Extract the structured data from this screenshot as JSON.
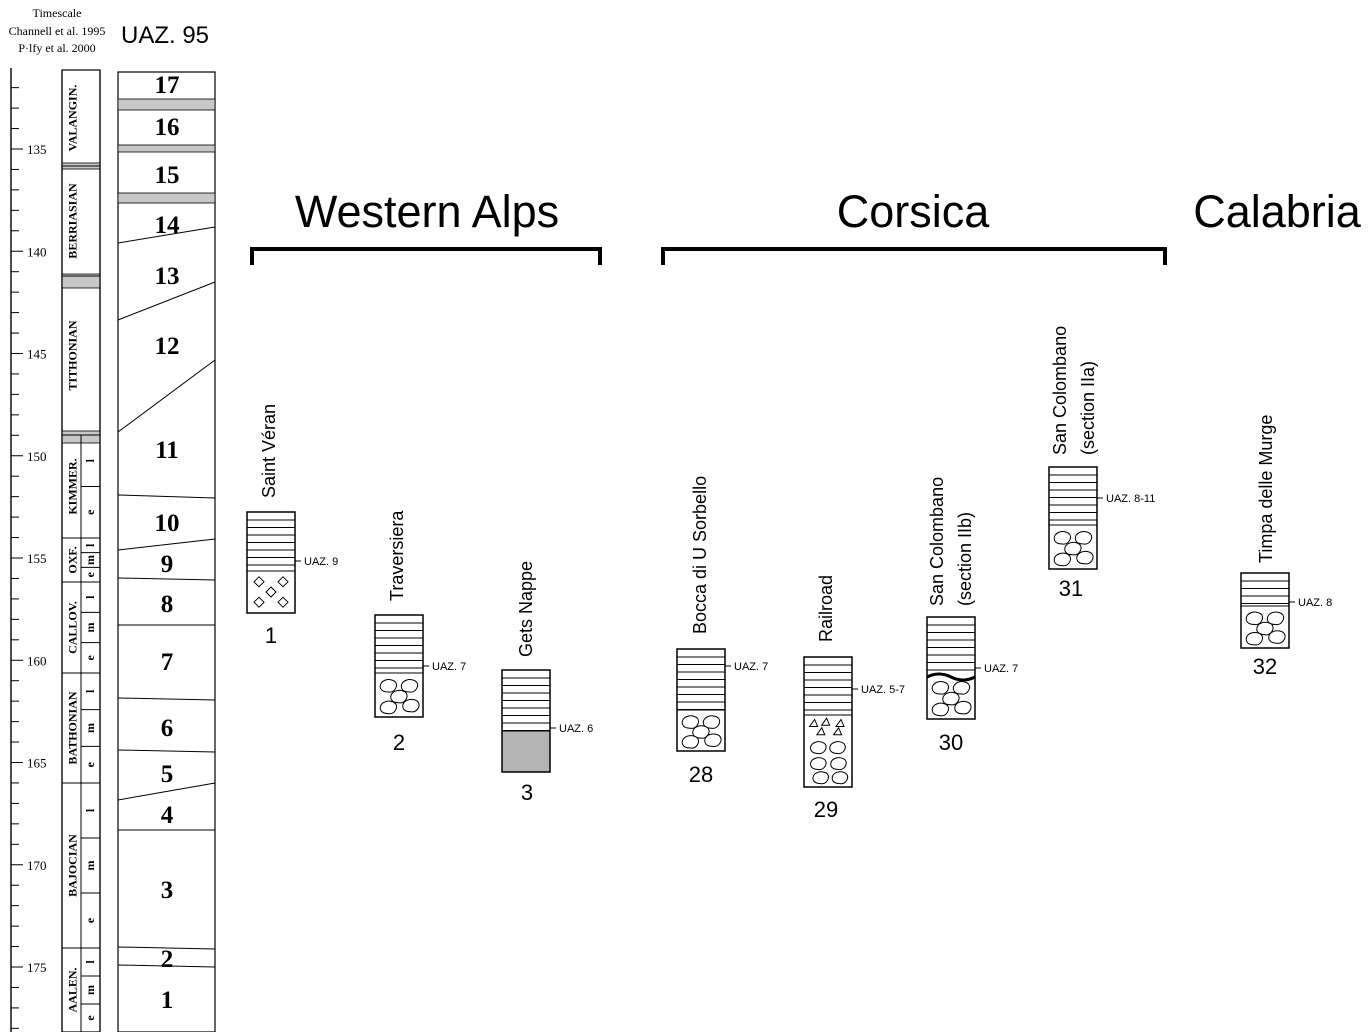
{
  "timescale": {
    "header": [
      "Timescale",
      "Channell et al. 1995",
      "P·lfy et al. 2000"
    ],
    "age_labels": [
      "135",
      "140",
      "145",
      "150",
      "155",
      "160",
      "165",
      "170",
      "175"
    ]
  },
  "uaz_title": "UAZ. 95",
  "stages": [
    {
      "name": "VALANGIN.",
      "subs": []
    },
    {
      "name": "BERRIASIAN",
      "subs": []
    },
    {
      "name": "TITHONIAN",
      "subs": []
    },
    {
      "name": "KIMMER.",
      "subs": [
        "l",
        "e"
      ]
    },
    {
      "name": "OXF.",
      "subs": [
        "l",
        "m",
        "e"
      ]
    },
    {
      "name": "CALLOV.",
      "subs": [
        "l",
        "m",
        "e"
      ]
    },
    {
      "name": "BATHONIAN",
      "subs": [
        "l",
        "m",
        "e"
      ]
    },
    {
      "name": "BAJOCIAN",
      "subs": [
        "l",
        "m",
        "e"
      ]
    },
    {
      "name": "AALEN.",
      "subs": [
        "l",
        "m",
        "e"
      ]
    }
  ],
  "zones": [
    "17",
    "16",
    "15",
    "14",
    "13",
    "12",
    "11",
    "10",
    "9",
    "8",
    "7",
    "6",
    "5",
    "4",
    "3",
    "2",
    "1"
  ],
  "regions": [
    "Western Alps",
    "Corsica",
    "Calabria"
  ],
  "sections": [
    {
      "name": [
        "Saint Véran"
      ],
      "number": "1",
      "uaz": "UAZ. 9"
    },
    {
      "name": [
        "Traversiera"
      ],
      "number": "2",
      "uaz": "UAZ. 7"
    },
    {
      "name": [
        "Gets Nappe"
      ],
      "number": "3",
      "uaz": "UAZ. 6"
    },
    {
      "name": [
        "Bocca di U Sorbello"
      ],
      "number": "28",
      "uaz": "UAZ. 7"
    },
    {
      "name": [
        "Railroad"
      ],
      "number": "29",
      "uaz": "UAZ. 5-7"
    },
    {
      "name": [
        "San Colombano",
        "(section IIb)"
      ],
      "number": "30",
      "uaz": "UAZ. 7"
    },
    {
      "name": [
        "San Colombano",
        "(section IIa)"
      ],
      "number": "31",
      "uaz": "UAZ. 8-11"
    },
    {
      "name": [
        "Timpa delle Murge"
      ],
      "number": "32",
      "uaz": "UAZ. 8"
    }
  ]
}
